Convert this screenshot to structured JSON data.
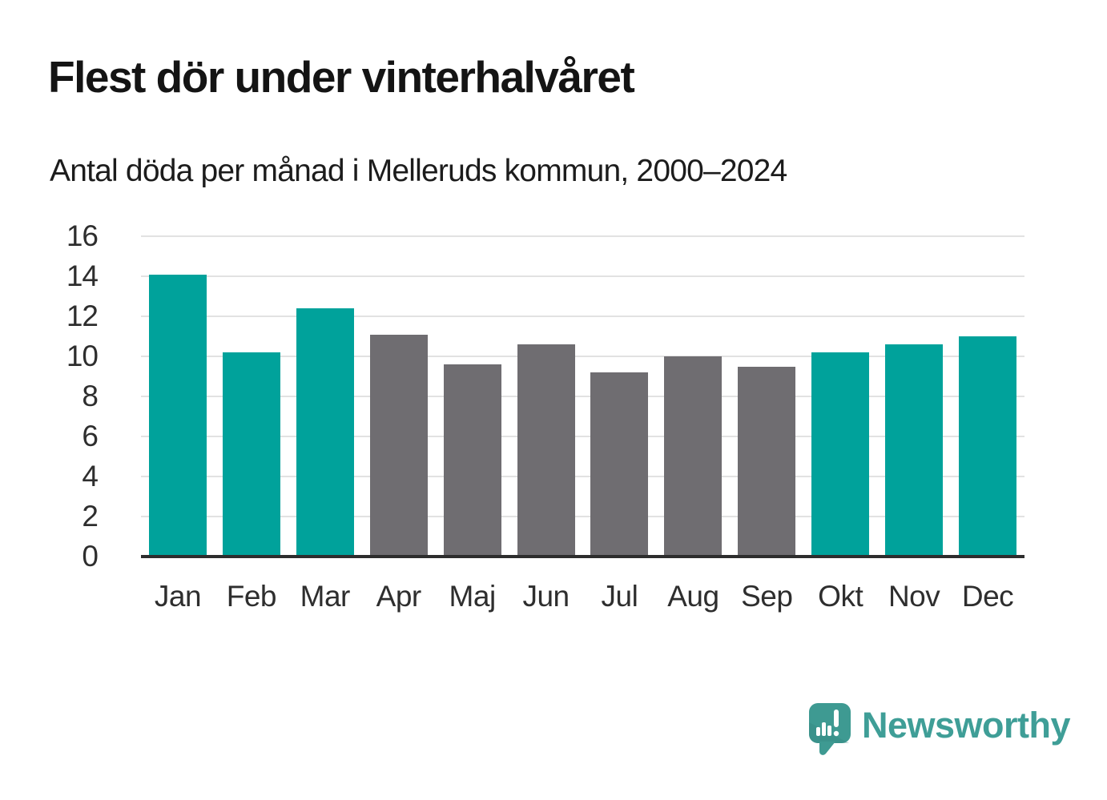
{
  "header": {
    "title": "Flest dör under vinterhalvåret",
    "subtitle": "Antal döda per månad i Melleruds kommun, 2000–2024"
  },
  "chart_data": {
    "type": "bar",
    "title": "Flest dör under vinterhalvåret",
    "subtitle": "Antal döda per månad i Melleruds kommun, 2000–2024",
    "categories": [
      "Jan",
      "Feb",
      "Mar",
      "Apr",
      "Maj",
      "Jun",
      "Jul",
      "Aug",
      "Sep",
      "Okt",
      "Nov",
      "Dec"
    ],
    "values": [
      14.1,
      10.2,
      12.4,
      11.1,
      9.6,
      10.6,
      9.2,
      10.0,
      9.5,
      10.2,
      10.6,
      11.0
    ],
    "highlighted_categories": [
      "Jan",
      "Feb",
      "Mar",
      "Okt",
      "Nov",
      "Dec"
    ],
    "highlight_color": "#00a29b",
    "default_color": "#6f6d71",
    "ylim": [
      0,
      16
    ],
    "yticks": [
      0,
      2,
      4,
      6,
      8,
      10,
      12,
      14,
      16
    ],
    "xlabel": "",
    "ylabel": "",
    "grid": "horizontal",
    "legend": "none"
  },
  "footer": {
    "brand_name": "Newsworthy",
    "logo_icon": "newsworthy-speech-bubble-bar-chart-icon",
    "brand_color": "#3f9e97",
    "logo_bubble_color": "#3e9a92",
    "logo_bubble_shadow_color": "#35857e"
  },
  "colors": {
    "background": "#ffffff",
    "bar_teal": "#00a29b",
    "bar_gray": "#6f6d71",
    "gridline": "#e2e2e2",
    "axis_line": "#2d2d2d",
    "tick_text": "#2e2e2e",
    "title_text": "#141414"
  }
}
